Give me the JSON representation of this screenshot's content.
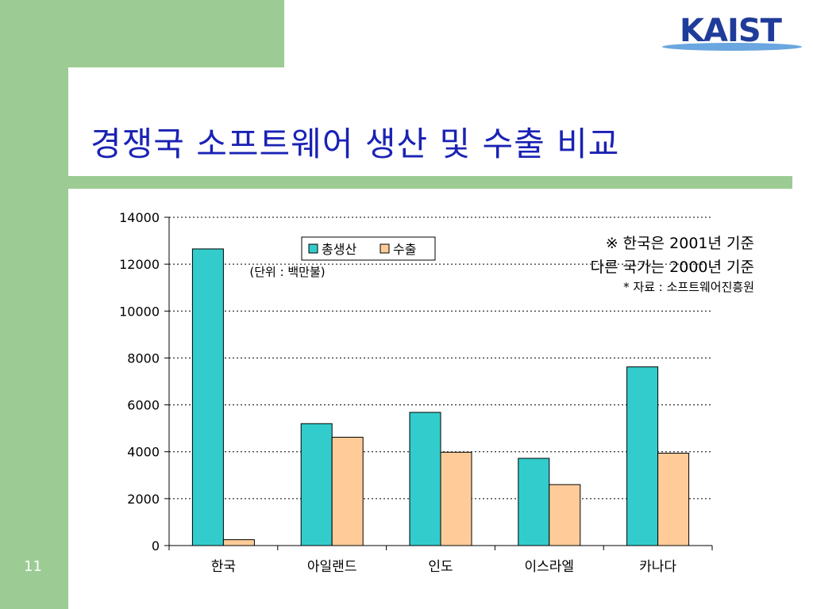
{
  "slide": {
    "title": "경쟁국 소프트웨어 생산 및 수출 비교",
    "page_number": "11",
    "logo_text": "KAIST"
  },
  "notes": {
    "line1": "※ 한국은 2001년 기준",
    "line2": "다른 국가는 2000년 기준",
    "line3": "* 자료 : 소프트웨어진흥원"
  },
  "colors": {
    "series1": "#33cccc",
    "series2": "#ffcc99",
    "accent_green": "#9ccb94",
    "title_blue": "#1a22b4"
  },
  "chart_data": {
    "type": "bar",
    "unit_label": "(단위 : 백만불)",
    "categories": [
      "한국",
      "아일랜드",
      "인도",
      "이스라엘",
      "카나다"
    ],
    "series": [
      {
        "name": "총생산",
        "values": [
          12650,
          5200,
          5680,
          3720,
          7620
        ]
      },
      {
        "name": "수출",
        "values": [
          250,
          4620,
          3980,
          2600,
          3940
        ]
      }
    ],
    "ylim": [
      0,
      14000
    ],
    "yticks": [
      0,
      2000,
      4000,
      6000,
      8000,
      10000,
      12000,
      14000
    ],
    "grid": true,
    "legend_position": "top-center"
  }
}
